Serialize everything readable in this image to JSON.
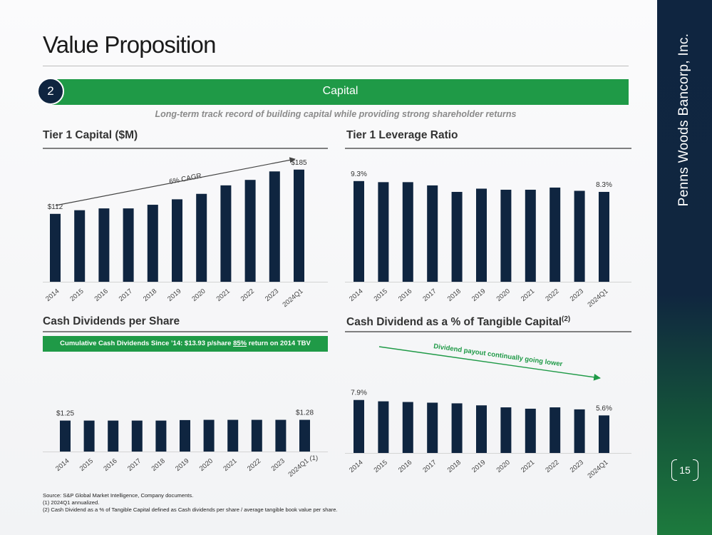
{
  "title": "Value Proposition",
  "section_number": "2",
  "section_label": "Capital",
  "tagline": "Long-term track record of building capital while providing strong shareholder returns",
  "company": "Penns Woods Bancorp, Inc.",
  "page_number": "15",
  "colors": {
    "navy": "#0f2540",
    "green": "#1f9a47"
  },
  "panels": {
    "tier1_capital_title": "Tier 1 Capital ($M)",
    "leverage_title": "Tier 1 Leverage Ratio",
    "dividends_title": "Cash Dividends per Share",
    "div_pct_title": "Cash Dividend as a % of Tangible Capital",
    "div_pct_sup": "(2)",
    "cagr_note": "6% CAGR",
    "payout_note": "Dividend payout continually going lower",
    "div_banner_pre": "Cumulative Cash Dividends Since ’14: $13.93 p/share ",
    "div_banner_pct": "85%",
    "div_banner_post": " return on 2014 TBV"
  },
  "footnotes": {
    "source": "Source: S&P Global Market Intelligence, Company documents.",
    "note1": "(1) 2024Q1 annualized.",
    "note2": "(2) Cash Dividend as a % of Tangible Capital defined as Cash dividends per share / average tangible book value per share."
  },
  "chart_data": [
    {
      "id": "tier1",
      "type": "bar",
      "title": "Tier 1 Capital ($M)",
      "categories": [
        "2014",
        "2015",
        "2016",
        "2017",
        "2018",
        "2019",
        "2020",
        "2021",
        "2022",
        "2023",
        "2024Q1"
      ],
      "values": [
        112,
        118,
        121,
        121,
        127,
        136,
        145,
        159,
        168,
        182,
        185
      ],
      "ylim": [
        0,
        200
      ],
      "data_labels": {
        "0": "$112",
        "10": "$185"
      }
    },
    {
      "id": "leverage",
      "type": "bar",
      "title": "Tier 1 Leverage Ratio",
      "categories": [
        "2014",
        "2015",
        "2016",
        "2017",
        "2018",
        "2019",
        "2020",
        "2021",
        "2022",
        "2023",
        "2024Q1"
      ],
      "values": [
        9.3,
        9.2,
        9.2,
        8.9,
        8.3,
        8.6,
        8.5,
        8.5,
        8.7,
        8.4,
        8.3
      ],
      "ylim": [
        0,
        11.2
      ],
      "data_labels": {
        "0": "9.3%",
        "10": "8.3%"
      }
    },
    {
      "id": "dividends",
      "type": "bar",
      "title": "Cash Dividends per Share",
      "categories": [
        "2014",
        "2015",
        "2016",
        "2017",
        "2018",
        "2019",
        "2020",
        "2021",
        "2022",
        "2023",
        "2024Q1"
      ],
      "values": [
        1.25,
        1.25,
        1.25,
        1.25,
        1.25,
        1.27,
        1.28,
        1.28,
        1.28,
        1.28,
        1.28
      ],
      "ylim": [
        0,
        2.88
      ],
      "data_labels": {
        "0": "$1.25",
        "10": "$1.28"
      },
      "last_category_note": "(1)"
    },
    {
      "id": "divpct",
      "type": "bar",
      "title": "Cash Dividend as a % of Tangible Capital",
      "categories": [
        "2014",
        "2015",
        "2016",
        "2017",
        "2018",
        "2019",
        "2020",
        "2021",
        "2022",
        "2023",
        "2024Q1"
      ],
      "values": [
        7.9,
        7.7,
        7.6,
        7.5,
        7.4,
        7.1,
        6.8,
        6.6,
        6.8,
        6.5,
        5.6
      ],
      "ylim": [
        0,
        11.7
      ],
      "data_labels": {
        "0": "7.9%",
        "10": "5.6%"
      }
    }
  ]
}
